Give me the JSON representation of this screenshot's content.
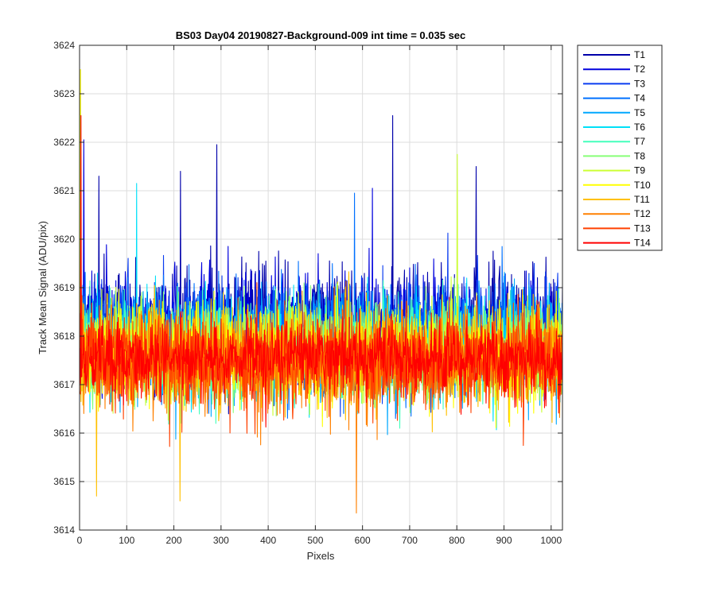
{
  "chart_data": {
    "type": "line",
    "title": "BS03 Day04 20190827-Background-009 int time = 0.035 sec",
    "xlabel": "Pixels",
    "ylabel": "Track Mean Signal (ADU/pix)",
    "xlim": [
      0,
      1024
    ],
    "ylim": [
      3614,
      3624
    ],
    "xticks": [
      0,
      100,
      200,
      300,
      400,
      500,
      600,
      700,
      800,
      900,
      1000
    ],
    "yticks": [
      3614,
      3615,
      3616,
      3617,
      3618,
      3619,
      3620,
      3621,
      3622,
      3623,
      3624
    ],
    "grid": true,
    "legend_position": "outside-top-right",
    "n_points": 1024,
    "series": [
      {
        "name": "T1",
        "color": "#0000aa",
        "mean": 3618.25,
        "spread": 0.95,
        "peaks": [
          [
            290,
            3621.95
          ],
          [
            663,
            3622.55
          ],
          [
            213,
            3621.4
          ],
          [
            840,
            3621.5
          ],
          [
            40,
            3621.3
          ]
        ]
      },
      {
        "name": "T2",
        "color": "#0000dd",
        "mean": 3618.15,
        "spread": 0.9,
        "peaks": [
          [
            8,
            3622.05
          ],
          [
            620,
            3621.05
          ]
        ]
      },
      {
        "name": "T3",
        "color": "#0a3cf0",
        "mean": 3618.05,
        "spread": 0.85,
        "peaks": []
      },
      {
        "name": "T4",
        "color": "#0070ff",
        "mean": 3617.95,
        "spread": 0.85,
        "peaks": [
          [
            582,
            3620.95
          ]
        ]
      },
      {
        "name": "T5",
        "color": "#00a8ff",
        "mean": 3617.85,
        "spread": 0.85,
        "peaks": []
      },
      {
        "name": "T6",
        "color": "#00e0f8",
        "mean": 3617.8,
        "spread": 0.8,
        "peaks": [
          [
            120,
            3621.15
          ]
        ]
      },
      {
        "name": "T7",
        "color": "#44ffbc",
        "mean": 3617.75,
        "spread": 0.8,
        "peaks": []
      },
      {
        "name": "T8",
        "color": "#88ff78",
        "mean": 3617.7,
        "spread": 0.8,
        "peaks": []
      },
      {
        "name": "T9",
        "color": "#ccff34",
        "mean": 3617.65,
        "spread": 0.8,
        "peaks": [
          [
            800,
            3621.75
          ]
        ]
      },
      {
        "name": "T10",
        "color": "#ffff00",
        "mean": 3617.6,
        "spread": 0.8,
        "peaks": [
          [
            1,
            3623.5
          ]
        ]
      },
      {
        "name": "T11",
        "color": "#ffc000",
        "mean": 3617.55,
        "spread": 0.8,
        "peaks": [
          [
            35,
            3614.7
          ],
          [
            212,
            3614.6
          ]
        ]
      },
      {
        "name": "T12",
        "color": "#ff8000",
        "mean": 3617.5,
        "spread": 0.8,
        "peaks": [
          [
            586,
            3614.35
          ]
        ]
      },
      {
        "name": "T13",
        "color": "#ff4000",
        "mean": 3617.5,
        "spread": 0.8,
        "peaks": []
      },
      {
        "name": "T14",
        "color": "#ff0000",
        "mean": 3617.55,
        "spread": 0.6,
        "peaks": [
          [
            2,
            3622.55
          ]
        ]
      }
    ]
  }
}
